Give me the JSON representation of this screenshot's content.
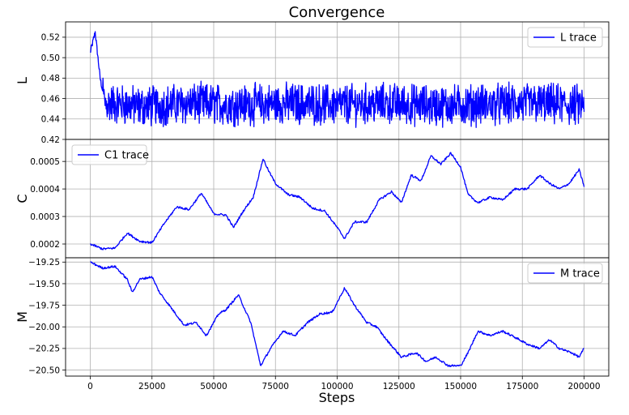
{
  "chart_data": {
    "type": "line",
    "title": "Convergence",
    "xlabel": "Steps",
    "xlim": [
      -10000,
      210000
    ],
    "xticks": [
      0,
      25000,
      50000,
      75000,
      100000,
      125000,
      150000,
      175000,
      200000
    ],
    "grid": true,
    "line_color": "#0000ff",
    "panels": [
      {
        "id": "L",
        "ylabel": "L",
        "ylim": [
          0.42,
          0.535
        ],
        "yticks": [
          0.42,
          0.44,
          0.46,
          0.48,
          0.5,
          0.52
        ],
        "ytick_labels": [
          "0.42",
          "0.44",
          "0.46",
          "0.48",
          "0.50",
          "0.52"
        ],
        "legend": "L trace",
        "legend_loc": "upper right",
        "series": {
          "name": "L trace",
          "x": [
            0,
            2000,
            4000,
            6000,
            10000,
            20000,
            40000,
            60000,
            80000,
            100000,
            120000,
            140000,
            160000,
            180000,
            200000
          ],
          "y": [
            0.505,
            0.525,
            0.48,
            0.455,
            0.455,
            0.452,
            0.455,
            0.454,
            0.455,
            0.454,
            0.455,
            0.453,
            0.454,
            0.455,
            0.453
          ],
          "noise_band": [
            0.43,
            0.48
          ]
        }
      },
      {
        "id": "C",
        "ylabel": "C",
        "ylim": [
          0.00015,
          0.00058
        ],
        "yticks": [
          0.0002,
          0.0003,
          0.0004,
          0.0005
        ],
        "ytick_labels": [
          "0.0002",
          "0.0003",
          "0.0004",
          "0.0005"
        ],
        "legend": "C1 trace",
        "legend_loc": "upper left",
        "series": {
          "name": "C1 trace",
          "x": [
            0,
            5000,
            10000,
            15000,
            20000,
            25000,
            30000,
            35000,
            40000,
            45000,
            50000,
            55000,
            58000,
            62000,
            66000,
            70000,
            72000,
            75000,
            80000,
            85000,
            90000,
            95000,
            100000,
            103000,
            107000,
            112000,
            117000,
            122000,
            126000,
            130000,
            134000,
            138000,
            142000,
            146000,
            150000,
            153000,
            157000,
            162000,
            167000,
            172000,
            177000,
            182000,
            186000,
            190000,
            194000,
            198000,
            200000
          ],
          "y": [
            0.0002,
            0.000182,
            0.000185,
            0.00024,
            0.00021,
            0.000205,
            0.000275,
            0.000335,
            0.000325,
            0.000385,
            0.00031,
            0.000305,
            0.00026,
            0.00032,
            0.00037,
            0.00051,
            0.00047,
            0.00042,
            0.00038,
            0.00037,
            0.00033,
            0.00032,
            0.00026,
            0.00022,
            0.00028,
            0.00028,
            0.00036,
            0.00039,
            0.00035,
            0.00045,
            0.00043,
            0.00052,
            0.00049,
            0.00053,
            0.00048,
            0.00038,
            0.00035,
            0.00037,
            0.00036,
            0.0004,
            0.0004,
            0.00045,
            0.00042,
            0.0004,
            0.00042,
            0.00047,
            0.00041
          ]
        }
      },
      {
        "id": "M",
        "ylabel": "M",
        "ylim": [
          -20.57,
          -19.2
        ],
        "yticks": [
          -20.5,
          -20.25,
          -20.0,
          -19.75,
          -19.5,
          -19.25
        ],
        "ytick_labels": [
          "−20.50",
          "−20.25",
          "−20.00",
          "−19.75",
          "−19.50",
          "−19.25"
        ],
        "legend": "M trace",
        "legend_loc": "upper right",
        "series": {
          "name": "M trace",
          "x": [
            0,
            5000,
            10000,
            15000,
            17000,
            20000,
            25000,
            28000,
            32000,
            38000,
            43000,
            47000,
            52000,
            55000,
            60000,
            65000,
            69000,
            73000,
            78000,
            83000,
            88000,
            93000,
            98000,
            103000,
            107000,
            112000,
            116000,
            120000,
            126000,
            132000,
            136000,
            140000,
            145000,
            150000,
            153000,
            157000,
            162000,
            167000,
            172000,
            177000,
            182000,
            186000,
            190000,
            195000,
            198000,
            200000
          ],
          "y": [
            -19.25,
            -19.32,
            -19.3,
            -19.45,
            -19.6,
            -19.45,
            -19.42,
            -19.6,
            -19.75,
            -19.98,
            -19.95,
            -20.1,
            -19.85,
            -19.8,
            -19.63,
            -19.95,
            -20.45,
            -20.25,
            -20.05,
            -20.1,
            -19.95,
            -19.85,
            -19.83,
            -19.55,
            -19.75,
            -19.95,
            -20.0,
            -20.15,
            -20.35,
            -20.3,
            -20.4,
            -20.35,
            -20.45,
            -20.45,
            -20.3,
            -20.05,
            -20.1,
            -20.05,
            -20.12,
            -20.2,
            -20.25,
            -20.15,
            -20.25,
            -20.3,
            -20.35,
            -20.25
          ]
        }
      }
    ]
  }
}
